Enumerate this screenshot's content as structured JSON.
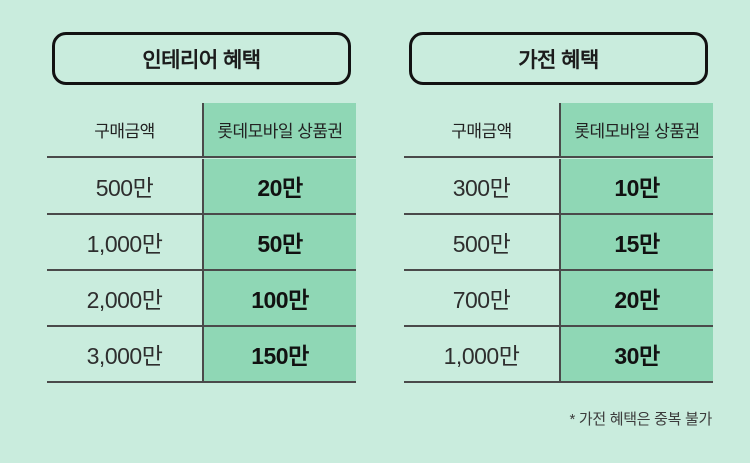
{
  "page": {
    "background_color": "#c9ecdd",
    "accent_column_color": "#8fd7b5",
    "rule_color": "#4a4a4a"
  },
  "tables": [
    {
      "title": "인테리어 혜택",
      "columns": [
        "구매금액",
        "롯데모바일 상품권"
      ],
      "rows": [
        {
          "amount": "500만",
          "voucher": "20만"
        },
        {
          "amount": "1,000만",
          "voucher": "50만"
        },
        {
          "amount": "2,000만",
          "voucher": "100만"
        },
        {
          "amount": "3,000만",
          "voucher": "150만"
        }
      ]
    },
    {
      "title": "가전 혜택",
      "columns": [
        "구매금액",
        "롯데모바일 상품권"
      ],
      "rows": [
        {
          "amount": "300만",
          "voucher": "10만"
        },
        {
          "amount": "500만",
          "voucher": "15만"
        },
        {
          "amount": "700만",
          "voucher": "20만"
        },
        {
          "amount": "1,000만",
          "voucher": "30만"
        }
      ]
    }
  ],
  "footnote": "* 가전 혜택은 중복 불가"
}
